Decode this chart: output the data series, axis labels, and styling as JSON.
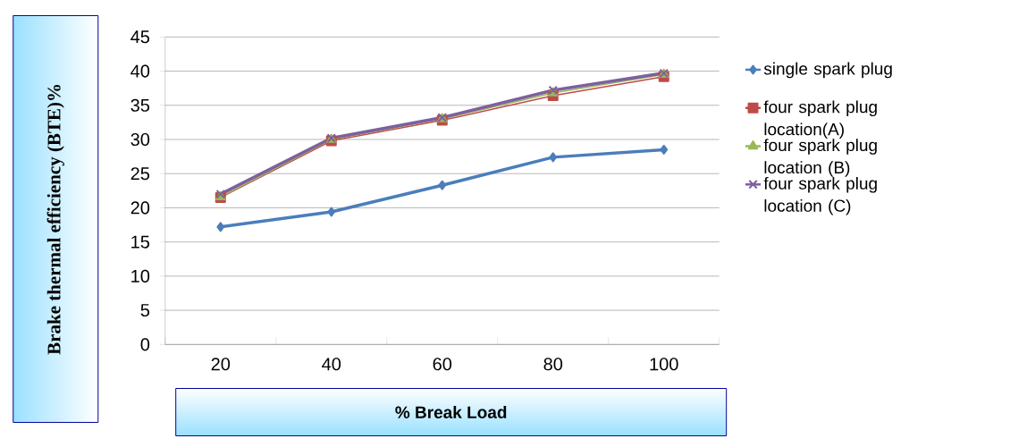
{
  "chart_data": {
    "type": "line",
    "xlabel": "% Break Load",
    "ylabel": "Brake thermal efficiency (BTE)%",
    "categories": [
      "20",
      "40",
      "60",
      "80",
      "100"
    ],
    "ylim": [
      0,
      45
    ],
    "yticks": [
      0,
      5,
      10,
      15,
      20,
      25,
      30,
      35,
      40,
      45
    ],
    "grid": "y",
    "legend": "right",
    "series": [
      {
        "name": "single spark plug",
        "color": "#4a7ebb",
        "marker": "diamond",
        "values": [
          17.2,
          19.4,
          23.3,
          27.4,
          28.5
        ]
      },
      {
        "name": "four spark plug location(A)",
        "color": "#be4b48",
        "marker": "square",
        "values": [
          21.5,
          29.8,
          32.8,
          36.4,
          39.2
        ]
      },
      {
        "name": "four spark plug location (B)",
        "color": "#98b954",
        "marker": "triangle",
        "values": [
          21.6,
          30.0,
          33.0,
          36.8,
          39.5
        ]
      },
      {
        "name": "four spark plug location (C)",
        "color": "#7d60a0",
        "marker": "cross",
        "values": [
          22.0,
          30.2,
          33.2,
          37.2,
          39.7
        ]
      }
    ]
  }
}
